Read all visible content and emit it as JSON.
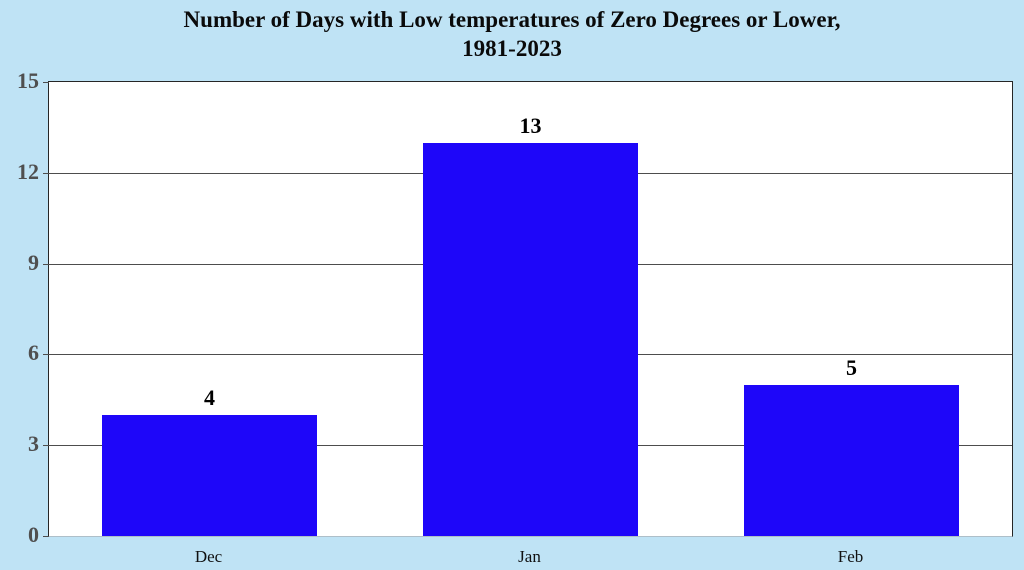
{
  "chart_data": {
    "type": "bar",
    "title": "Number of Days with Low temperatures of Zero Degrees or Lower, 1981-2023",
    "title_line1": "Number of Days with Low temperatures of Zero Degrees or Lower,",
    "title_line2": "1981-2023",
    "categories": [
      "Dec",
      "Jan",
      "Feb"
    ],
    "values": [
      4,
      13,
      5
    ],
    "data_labels": [
      "4",
      "13",
      "5"
    ],
    "xlabel": "",
    "ylabel": "",
    "ylim": [
      0,
      15
    ],
    "yticks": [
      0,
      3,
      6,
      9,
      12,
      15
    ],
    "ytick_interval": 3,
    "grid": true,
    "legend": "none",
    "colors": {
      "bar": "#1e06f9",
      "page_background": "#bfe3f5",
      "plot_background": "#ffffff",
      "gridline": "#4d4d4d",
      "plot_border": "#262626",
      "y_label": "#4f4f4f",
      "text": "#000000"
    }
  }
}
